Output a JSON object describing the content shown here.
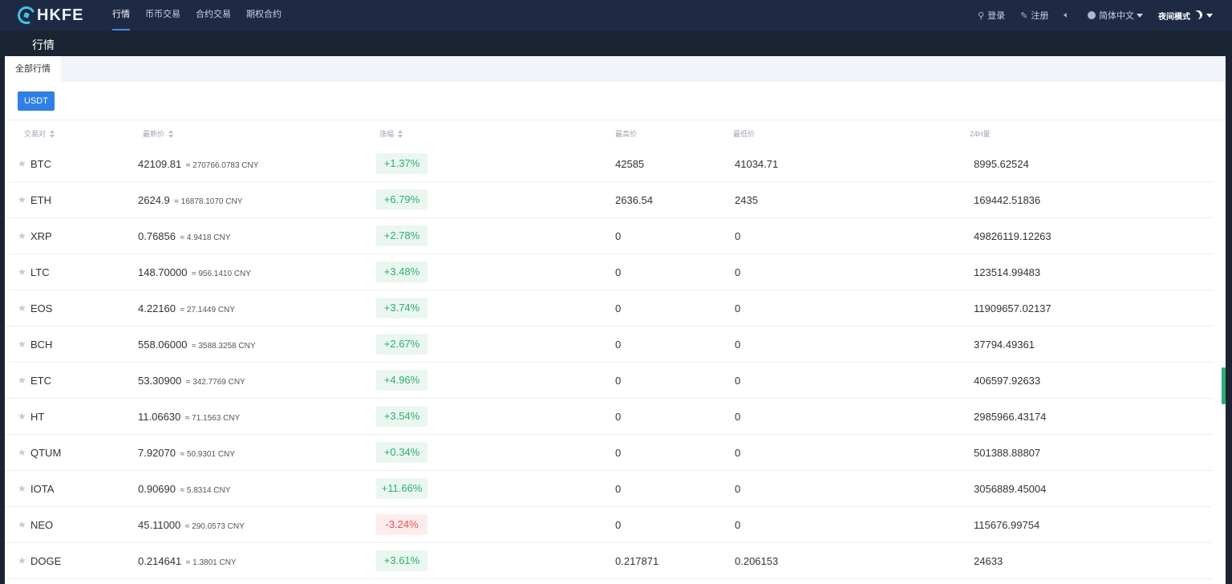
{
  "nav": {
    "brand": "HKFE",
    "links": [
      "行情",
      "币币交易",
      "合约交易",
      "期权合约"
    ],
    "active_index": 0,
    "login": "登录",
    "register": "注册",
    "language": "简体中文",
    "night_mode": "夜间模式"
  },
  "subheader": {
    "title": "行情"
  },
  "tabs": {
    "all_markets": "全部行情"
  },
  "quote_filter": {
    "label": "USDT"
  },
  "table": {
    "headers": {
      "pair": "交易对",
      "latest": "最新价",
      "change": "涨幅",
      "high": "最高价",
      "low": "最低价",
      "volume": "24H量"
    },
    "rows": [
      {
        "symbol": "BTC",
        "price": "42109.81",
        "cny": "≈ 270766.0783 CNY",
        "change": "+1.37%",
        "dir": "up",
        "high": "42585",
        "low": "41034.71",
        "volume": "8995.62524"
      },
      {
        "symbol": "ETH",
        "price": "2624.9",
        "cny": "≈ 16878.1070 CNY",
        "change": "+6.79%",
        "dir": "up",
        "high": "2636.54",
        "low": "2435",
        "volume": "169442.51836"
      },
      {
        "symbol": "XRP",
        "price": "0.76856",
        "cny": "≈ 4.9418 CNY",
        "change": "+2.78%",
        "dir": "up",
        "high": "0",
        "low": "0",
        "volume": "49826119.12263"
      },
      {
        "symbol": "LTC",
        "price": "148.70000",
        "cny": "≈ 956.1410 CNY",
        "change": "+3.48%",
        "dir": "up",
        "high": "0",
        "low": "0",
        "volume": "123514.99483"
      },
      {
        "symbol": "EOS",
        "price": "4.22160",
        "cny": "≈ 27.1449 CNY",
        "change": "+3.74%",
        "dir": "up",
        "high": "0",
        "low": "0",
        "volume": "11909657.02137"
      },
      {
        "symbol": "BCH",
        "price": "558.06000",
        "cny": "≈ 3588.3258 CNY",
        "change": "+2.67%",
        "dir": "up",
        "high": "0",
        "low": "0",
        "volume": "37794.49361"
      },
      {
        "symbol": "ETC",
        "price": "53.30900",
        "cny": "≈ 342.7769 CNY",
        "change": "+4.96%",
        "dir": "up",
        "high": "0",
        "low": "0",
        "volume": "406597.92633"
      },
      {
        "symbol": "HT",
        "price": "11.06630",
        "cny": "≈ 71.1563 CNY",
        "change": "+3.54%",
        "dir": "up",
        "high": "0",
        "low": "0",
        "volume": "2985966.43174"
      },
      {
        "symbol": "QTUM",
        "price": "7.92070",
        "cny": "≈ 50.9301 CNY",
        "change": "+0.34%",
        "dir": "up",
        "high": "0",
        "low": "0",
        "volume": "501388.88807"
      },
      {
        "symbol": "IOTA",
        "price": "0.90690",
        "cny": "≈ 5.8314 CNY",
        "change": "+11.66%",
        "dir": "up",
        "high": "0",
        "low": "0",
        "volume": "3056889.45004"
      },
      {
        "symbol": "NEO",
        "price": "45.11000",
        "cny": "≈ 290.0573 CNY",
        "change": "-3.24%",
        "dir": "down",
        "high": "0",
        "low": "0",
        "volume": "115676.99754"
      },
      {
        "symbol": "DOGE",
        "price": "0.214641",
        "cny": "≈ 1.3801 CNY",
        "change": "+3.61%",
        "dir": "up",
        "high": "0.217871",
        "low": "0.206153",
        "volume": "24633"
      }
    ]
  },
  "colors": {
    "nav_bg": "#1e2a44",
    "accent": "#2f7fe6",
    "up": "#2fae74",
    "down": "#e9504f"
  },
  "icons": {
    "user": "user-icon",
    "edit": "edit-icon",
    "speaker": "speaker-icon",
    "globe": "globe-icon",
    "moon": "moon-icon",
    "star": "star-icon",
    "sort": "sort-icon"
  }
}
